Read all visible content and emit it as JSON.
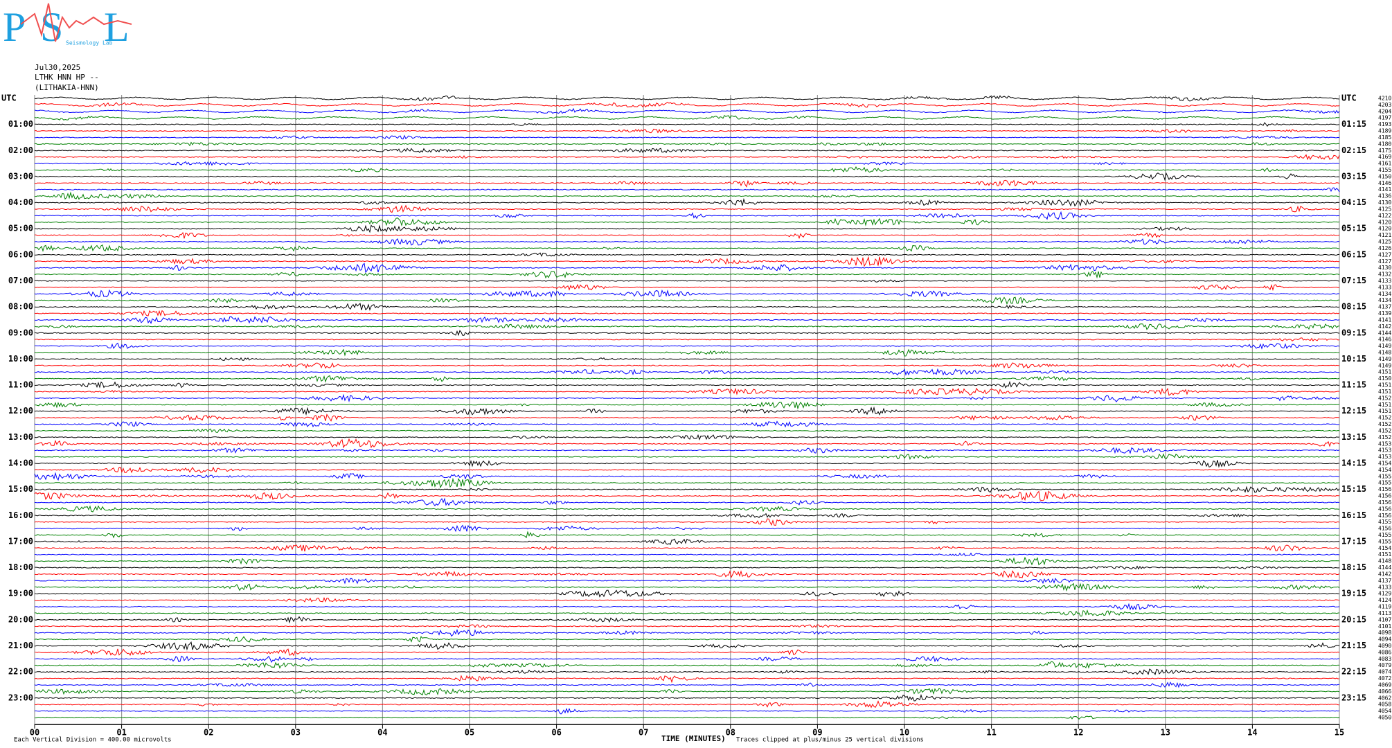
{
  "chart_data": {
    "type": "helicorder",
    "logo": {
      "letters": [
        "P",
        "S",
        "L"
      ],
      "caption": "Seismology Lab"
    },
    "header": [
      "Jul30,2025",
      "LTHK HNN HP --",
      "(LITHAKIA-HNN)"
    ],
    "left_labels": [
      "UTC",
      "01:00",
      "02:00",
      "03:00",
      "04:00",
      "05:00",
      "06:00",
      "07:00",
      "08:00",
      "09:00",
      "10:00",
      "11:00",
      "12:00",
      "13:00",
      "14:00",
      "15:00",
      "16:00",
      "17:00",
      "18:00",
      "19:00",
      "20:00",
      "21:00",
      "22:00",
      "23:00"
    ],
    "right_labels": [
      "UTC",
      "01:15",
      "02:15",
      "03:15",
      "04:15",
      "05:15",
      "06:15",
      "07:15",
      "08:15",
      "09:15",
      "10:15",
      "11:15",
      "12:15",
      "13:15",
      "14:15",
      "15:15",
      "16:15",
      "17:15",
      "18:15",
      "19:15",
      "20:15",
      "21:15",
      "22:15",
      "23:15"
    ],
    "row_values": [
      4210,
      4203,
      4204,
      4197,
      4193,
      4189,
      4185,
      4180,
      4175,
      4169,
      4161,
      4155,
      4150,
      4146,
      4141,
      4136,
      4130,
      4125,
      4122,
      4120,
      4120,
      4121,
      4125,
      4126,
      4127,
      4127,
      4130,
      4132,
      4133,
      4133,
      4134,
      4134,
      4137,
      4139,
      4141,
      4142,
      4144,
      4146,
      4149,
      4148,
      4149,
      4149,
      4151,
      4150,
      4151,
      4151,
      4152,
      4151,
      4151,
      4152,
      4152,
      4152,
      4152,
      4153,
      4153,
      4153,
      4154,
      4154,
      4155,
      4155,
      4156,
      4156,
      4156,
      4156,
      4156,
      4155,
      4156,
      4155,
      4155,
      4154,
      4151,
      4148,
      4144,
      4142,
      4137,
      4133,
      4129,
      4124,
      4119,
      4113,
      4107,
      4101,
      4098,
      4094,
      4090,
      4086,
      4083,
      4079,
      4074,
      4072,
      4069,
      4066,
      4062,
      4058,
      4054,
      4050
    ],
    "trace_colors": [
      "#000000",
      "#ff0000",
      "#0000ff",
      "#008000"
    ],
    "xlim": [
      0,
      15
    ],
    "xticks": [
      {
        "value": 0,
        "label": "00"
      },
      {
        "value": 1,
        "label": "01"
      },
      {
        "value": 2,
        "label": "02"
      },
      {
        "value": 3,
        "label": "03"
      },
      {
        "value": 4,
        "label": "04"
      },
      {
        "value": 5,
        "label": "05"
      },
      {
        "value": 6,
        "label": "06"
      },
      {
        "value": 7,
        "label": "07"
      },
      {
        "value": 8,
        "label": "08"
      },
      {
        "value": 9,
        "label": "09"
      },
      {
        "value": 10,
        "label": "10"
      },
      {
        "value": 11,
        "label": "11"
      },
      {
        "value": 12,
        "label": "12"
      },
      {
        "value": 13,
        "label": "13"
      },
      {
        "value": 14,
        "label": "14"
      },
      {
        "value": 15,
        "label": "15"
      }
    ],
    "xlabel": "TIME (MINUTES)",
    "scale_note": "Each Vertical Division = 400.00 microvolts",
    "clip_note": "Traces clipped at plus/minus 25 vertical divisions",
    "grid": true
  }
}
